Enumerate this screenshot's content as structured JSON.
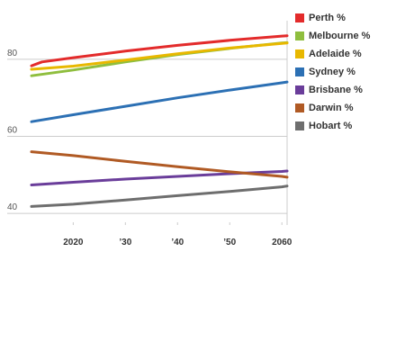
{
  "chart_data": {
    "type": "line",
    "xlim": [
      2012,
      2061
    ],
    "ylim": [
      37,
      90
    ],
    "y_ticks": [
      40,
      60,
      80
    ],
    "y_tick_labels": [
      "40",
      "60",
      "80"
    ],
    "x_ticks": [
      2020,
      2030,
      2040,
      2050,
      2060
    ],
    "x_tick_labels": [
      "2020",
      "’30",
      "’40",
      "’50",
      "2060"
    ],
    "grid": "horizontal",
    "legend_position": "right",
    "series": [
      {
        "name": "Perth %",
        "color": "#e32b2b",
        "x": [
          2012,
          2014,
          2020,
          2030,
          2040,
          2050,
          2060,
          2061
        ],
        "y": [
          78.3,
          79.3,
          80.4,
          82.1,
          83.6,
          84.9,
          86.0,
          86.1
        ]
      },
      {
        "name": "Melbourne %",
        "color": "#8fbe3e",
        "x": [
          2012,
          2020,
          2030,
          2040,
          2050,
          2060,
          2061
        ],
        "y": [
          75.7,
          77.2,
          79.3,
          81.2,
          82.8,
          84.2,
          84.3
        ]
      },
      {
        "name": "Adelaide %",
        "color": "#e8b800",
        "x": [
          2012,
          2020,
          2030,
          2040,
          2050,
          2060,
          2061
        ],
        "y": [
          77.4,
          78.2,
          79.8,
          81.4,
          82.9,
          84.1,
          84.2
        ]
      },
      {
        "name": "Sydney %",
        "color": "#2c70b4",
        "x": [
          2012,
          2020,
          2030,
          2040,
          2050,
          2060,
          2061
        ],
        "y": [
          63.8,
          65.6,
          67.8,
          70.0,
          72.0,
          73.9,
          74.1
        ]
      },
      {
        "name": "Brisbane %",
        "color": "#6a3d9a",
        "x": [
          2012,
          2020,
          2030,
          2040,
          2050,
          2060,
          2061
        ],
        "y": [
          47.4,
          48.1,
          48.9,
          49.6,
          50.3,
          50.9,
          51.0
        ]
      },
      {
        "name": "Darwin %",
        "color": "#b05a24",
        "x": [
          2012,
          2020,
          2030,
          2040,
          2050,
          2060,
          2061
        ],
        "y": [
          56.0,
          55.0,
          53.5,
          52.1,
          50.8,
          49.6,
          49.4
        ]
      },
      {
        "name": "Hobart %",
        "color": "#6e6e6e",
        "x": [
          2012,
          2020,
          2030,
          2040,
          2050,
          2060,
          2061
        ],
        "y": [
          41.8,
          42.4,
          43.5,
          44.6,
          45.7,
          46.9,
          47.1
        ]
      }
    ]
  }
}
